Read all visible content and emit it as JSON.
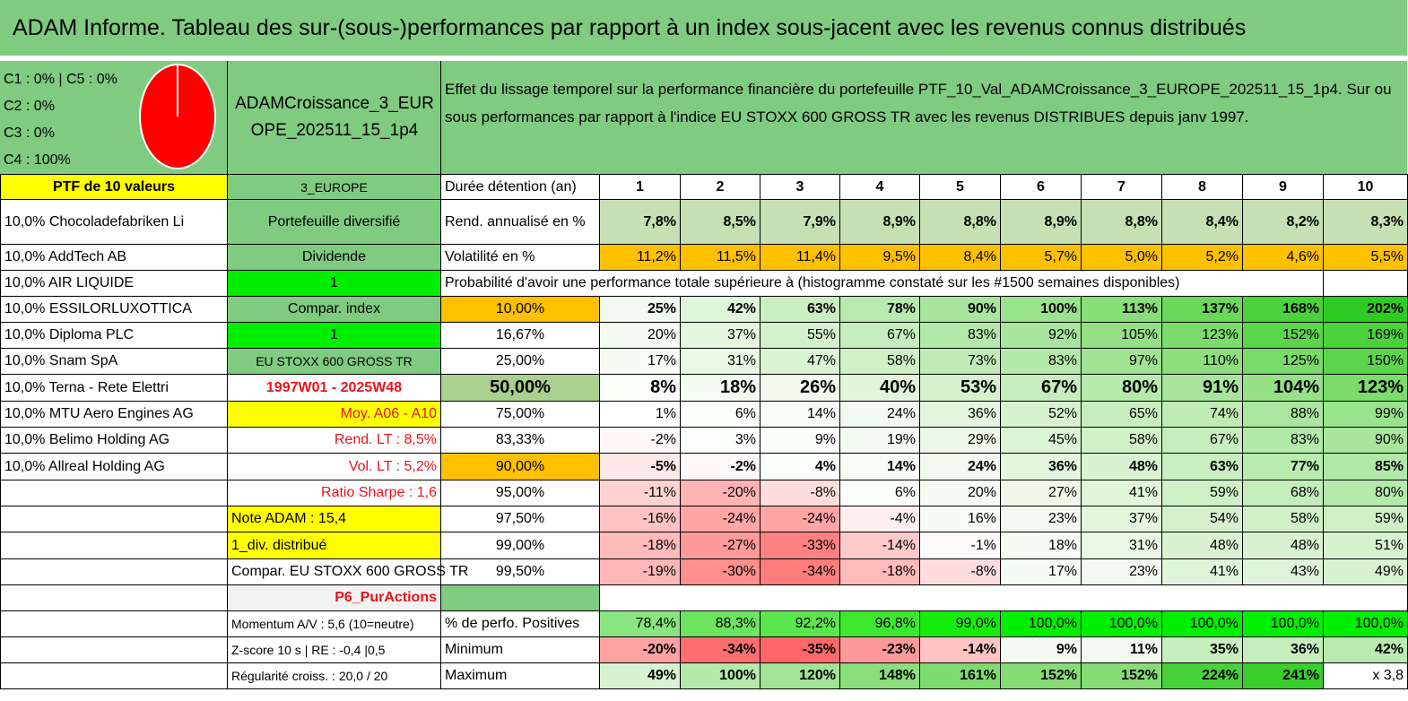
{
  "title": "ADAM Informe. Tableau des sur-(sous-)performances par rapport à un index sous-jacent avec les revenus connus distribués",
  "classes": [
    "C1 : 0% | C5 : 0%",
    "C2 : 0%",
    "C3 : 0%",
    "C4 : 100%"
  ],
  "pie": {
    "slices": [
      {
        "label": "C4",
        "value": 100,
        "color": "#ff0000"
      }
    ],
    "outline": "#ffffff"
  },
  "portfolio_code": "ADAMCroissance_3_EUROPE_202511_15_1p4",
  "description": "Effet du lissage temporel sur la performance financière du portefeuille PTF_10_Val_ADAMCroissance_3_EUROPE_202511_15_1p4. Sur ou sous performances par rapport à l'indice EU STOXX 600 GROSS TR avec les revenus DISTRIBUES depuis janv 1997.",
  "colors": {
    "header_green": "#7fcb80",
    "yellow": "#ffff00",
    "bright_green": "#00ee00",
    "orange": "#ffc000",
    "label_red": "#e8141c"
  },
  "rows": [
    [
      {
        "t": "PTF de 10 valeurs",
        "bg": "#ffff00",
        "cls": "c b"
      },
      {
        "t": "3_EUROPE",
        "bg": "#7fcb80",
        "cls": "c small"
      },
      {
        "t": "Durée détention (an)",
        "cls": "l"
      },
      {
        "t": "1",
        "cls": "c b"
      },
      {
        "t": "2",
        "cls": "c b"
      },
      {
        "t": "3",
        "cls": "c b"
      },
      {
        "t": "4",
        "cls": "c b"
      },
      {
        "t": "5",
        "cls": "c b"
      },
      {
        "t": "6",
        "cls": "c b"
      },
      {
        "t": "7",
        "cls": "c b"
      },
      {
        "t": "8",
        "cls": "c b"
      },
      {
        "t": "9",
        "cls": "c b"
      },
      {
        "t": "10",
        "cls": "c b"
      }
    ],
    [
      {
        "t": "10,0% Chocoladefabriken Li",
        "cls": "l"
      },
      {
        "t": "Portefeuille diversifié",
        "bg": "#7fcb80",
        "cls": "c"
      },
      {
        "t": "Rend. annualisé en %",
        "cls": "l"
      },
      {
        "t": "7,8%",
        "bg": "#c6e0b4",
        "cls": "r b"
      },
      {
        "t": "8,5%",
        "bg": "#c6e0b4",
        "cls": "r b"
      },
      {
        "t": "7,9%",
        "bg": "#c6e0b4",
        "cls": "r b"
      },
      {
        "t": "8,9%",
        "bg": "#c6e0b4",
        "cls": "r b"
      },
      {
        "t": "8,8%",
        "bg": "#c6e0b4",
        "cls": "r b"
      },
      {
        "t": "8,9%",
        "bg": "#c6e0b4",
        "cls": "r b"
      },
      {
        "t": "8,8%",
        "bg": "#c6e0b4",
        "cls": "r b"
      },
      {
        "t": "8,4%",
        "bg": "#c6e0b4",
        "cls": "r b"
      },
      {
        "t": "8,2%",
        "bg": "#c6e0b4",
        "cls": "r b"
      },
      {
        "t": "8,3%",
        "bg": "#c6e0b4",
        "cls": "r b"
      }
    ],
    [
      {
        "t": "10,0% AddTech AB",
        "cls": "l"
      },
      {
        "t": "Dividende",
        "bg": "#7fcb80",
        "cls": "c"
      },
      {
        "t": "Volatilité en %",
        "cls": "l"
      },
      {
        "t": "11,2%",
        "bg": "#ffc000",
        "cls": "r"
      },
      {
        "t": "11,5%",
        "bg": "#ffc000",
        "cls": "r"
      },
      {
        "t": "11,4%",
        "bg": "#ffc000",
        "cls": "r"
      },
      {
        "t": "9,5%",
        "bg": "#ffc000",
        "cls": "r"
      },
      {
        "t": "8,4%",
        "bg": "#ffc000",
        "cls": "r"
      },
      {
        "t": "5,7%",
        "bg": "#ffc000",
        "cls": "r"
      },
      {
        "t": "5,0%",
        "bg": "#ffc000",
        "cls": "r"
      },
      {
        "t": "5,2%",
        "bg": "#ffc000",
        "cls": "r"
      },
      {
        "t": "4,6%",
        "bg": "#ffc000",
        "cls": "r"
      },
      {
        "t": "5,5%",
        "bg": "#ffc000",
        "cls": "r"
      }
    ],
    [
      {
        "t": "10,0% AIR LIQUIDE",
        "cls": "l"
      },
      {
        "t": "1",
        "bg": "#00ee00",
        "cls": "c"
      },
      {
        "t": "Probabilité d'avoir une performance totale supérieure à (histogramme constaté sur les #1500 semaines disponibles)",
        "cls": "l",
        "span": 10
      },
      {
        "t": "",
        "cls": "c"
      }
    ],
    [
      {
        "t": "10,0% ESSILORLUXOTTICA",
        "cls": "l"
      },
      {
        "t": "Compar. index",
        "bg": "#7fcb80",
        "cls": "c"
      },
      {
        "t": "10,00%",
        "bg": "#ffc000",
        "cls": "c"
      },
      {
        "t": "25%",
        "bg": "#f1faee",
        "cls": "r b"
      },
      {
        "t": "42%",
        "bg": "#e0f5d9",
        "cls": "r b"
      },
      {
        "t": "63%",
        "bg": "#c9efc0",
        "cls": "r b"
      },
      {
        "t": "78%",
        "bg": "#b8eab0",
        "cls": "r b"
      },
      {
        "t": "90%",
        "bg": "#a8e69e",
        "cls": "r b"
      },
      {
        "t": "100%",
        "bg": "#9ae28d",
        "cls": "r b"
      },
      {
        "t": "113%",
        "bg": "#88de78",
        "cls": "r b"
      },
      {
        "t": "137%",
        "bg": "#6ad85a",
        "cls": "r b"
      },
      {
        "t": "168%",
        "bg": "#4bd23c",
        "cls": "r b"
      },
      {
        "t": "202%",
        "bg": "#2ecb22",
        "cls": "r b"
      }
    ],
    [
      {
        "t": "10,0% Diploma PLC",
        "cls": "l"
      },
      {
        "t": "1",
        "bg": "#00ee00",
        "cls": "c"
      },
      {
        "t": "16,67%",
        "cls": "c"
      },
      {
        "t": "20%",
        "bg": "#f4fbf1",
        "cls": "r"
      },
      {
        "t": "37%",
        "bg": "#e4f6de",
        "cls": "r"
      },
      {
        "t": "55%",
        "bg": "#d3f1cb",
        "cls": "r"
      },
      {
        "t": "67%",
        "bg": "#c6edbd",
        "cls": "r"
      },
      {
        "t": "83%",
        "bg": "#b3e9a9",
        "cls": "r"
      },
      {
        "t": "92%",
        "bg": "#a6e59b",
        "cls": "r"
      },
      {
        "t": "105%",
        "bg": "#95e086",
        "cls": "r"
      },
      {
        "t": "123%",
        "bg": "#7bdb6b",
        "cls": "r"
      },
      {
        "t": "152%",
        "bg": "#5bd54b",
        "cls": "r"
      },
      {
        "t": "169%",
        "bg": "#4ad23b",
        "cls": "r"
      }
    ],
    [
      {
        "t": "10,0% Snam SpA",
        "cls": "l"
      },
      {
        "t": "EU STOXX 600 GROSS TR",
        "bg": "#7fcb80",
        "cls": "c small"
      },
      {
        "t": "25,00%",
        "cls": "c"
      },
      {
        "t": "17%",
        "bg": "#f6fcf4",
        "cls": "r"
      },
      {
        "t": "31%",
        "bg": "#e9f8e4",
        "cls": "r"
      },
      {
        "t": "47%",
        "bg": "#daf3d3",
        "cls": "r"
      },
      {
        "t": "58%",
        "bg": "#d0f0c8",
        "cls": "r"
      },
      {
        "t": "73%",
        "bg": "#bfecb6",
        "cls": "r"
      },
      {
        "t": "83%",
        "bg": "#b3e9a9",
        "cls": "r"
      },
      {
        "t": "97%",
        "bg": "#a0e393",
        "cls": "r"
      },
      {
        "t": "110%",
        "bg": "#8ddf7e",
        "cls": "r"
      },
      {
        "t": "125%",
        "bg": "#78da68",
        "cls": "r"
      },
      {
        "t": "150%",
        "bg": "#5cd54c",
        "cls": "r"
      }
    ],
    [
      {
        "t": "10,0% Terna - Rete Elettri",
        "cls": "l"
      },
      {
        "t": "1997W01 - 2025W48",
        "cls": "c red b"
      },
      {
        "t": "50,00%",
        "bg": "#a9d08e",
        "cls": "c big"
      },
      {
        "t": "8%",
        "bg": "#fbfefa",
        "cls": "r big"
      },
      {
        "t": "18%",
        "bg": "#f5fcf2",
        "cls": "r big"
      },
      {
        "t": "26%",
        "bg": "#eff9ec",
        "cls": "r big"
      },
      {
        "t": "40%",
        "bg": "#e2f5db",
        "cls": "r big"
      },
      {
        "t": "53%",
        "bg": "#d5f2cd",
        "cls": "r big"
      },
      {
        "t": "67%",
        "bg": "#c6edbd",
        "cls": "r big"
      },
      {
        "t": "80%",
        "bg": "#b6eaac",
        "cls": "r big"
      },
      {
        "t": "91%",
        "bg": "#a7e59c",
        "cls": "r big"
      },
      {
        "t": "104%",
        "bg": "#96e087",
        "cls": "r big"
      },
      {
        "t": "123%",
        "bg": "#7bdb6b",
        "cls": "r big"
      }
    ],
    [
      {
        "t": "10,0% MTU Aero Engines AG",
        "cls": "l"
      },
      {
        "t": "Moy. A06 - A10",
        "bg": "#ffff00",
        "cls": "r red"
      },
      {
        "t": "75,00%",
        "cls": "c"
      },
      {
        "t": "1%",
        "bg": "#ffffff",
        "cls": "r"
      },
      {
        "t": "6%",
        "bg": "#fbfefa",
        "cls": "r"
      },
      {
        "t": "14%",
        "bg": "#f7fcf5",
        "cls": "r"
      },
      {
        "t": "24%",
        "bg": "#f1faee",
        "cls": "r"
      },
      {
        "t": "36%",
        "bg": "#e5f6df",
        "cls": "r"
      },
      {
        "t": "52%",
        "bg": "#d6f2ce",
        "cls": "r"
      },
      {
        "t": "65%",
        "bg": "#c8eebf",
        "cls": "r"
      },
      {
        "t": "74%",
        "bg": "#bfecb5",
        "cls": "r"
      },
      {
        "t": "88%",
        "bg": "#aae69f",
        "cls": "r"
      },
      {
        "t": "99%",
        "bg": "#9ae28d",
        "cls": "r"
      }
    ],
    [
      {
        "t": "10,0% Belimo Holding AG",
        "cls": "l"
      },
      {
        "t": "Rend. LT : 8,5%",
        "cls": "r red"
      },
      {
        "t": "83,33%",
        "cls": "c"
      },
      {
        "t": "-2%",
        "bg": "#fff8f8",
        "cls": "r"
      },
      {
        "t": "3%",
        "bg": "#fdfffc",
        "cls": "r"
      },
      {
        "t": "9%",
        "bg": "#fafdf9",
        "cls": "r"
      },
      {
        "t": "19%",
        "bg": "#f4fbf1",
        "cls": "r"
      },
      {
        "t": "29%",
        "bg": "#ecf8e7",
        "cls": "r"
      },
      {
        "t": "45%",
        "bg": "#dcf4d5",
        "cls": "r"
      },
      {
        "t": "58%",
        "bg": "#d0f0c8",
        "cls": "r"
      },
      {
        "t": "67%",
        "bg": "#c6edbd",
        "cls": "r"
      },
      {
        "t": "83%",
        "bg": "#b3e9a9",
        "cls": "r"
      },
      {
        "t": "90%",
        "bg": "#a8e69e",
        "cls": "r"
      }
    ],
    [
      {
        "t": "10,0% Allreal Holding AG",
        "cls": "l"
      },
      {
        "t": "Vol. LT : 5,2%",
        "cls": "r red"
      },
      {
        "t": "90,00%",
        "bg": "#ffc000",
        "cls": "c"
      },
      {
        "t": "-5%",
        "bg": "#ffe8e8",
        "cls": "r b"
      },
      {
        "t": "-2%",
        "bg": "#fff8f8",
        "cls": "r b"
      },
      {
        "t": "4%",
        "bg": "#fcfefb",
        "cls": "r b"
      },
      {
        "t": "14%",
        "bg": "#f7fcf5",
        "cls": "r b"
      },
      {
        "t": "24%",
        "bg": "#f1faee",
        "cls": "r b"
      },
      {
        "t": "36%",
        "bg": "#e5f6df",
        "cls": "r b"
      },
      {
        "t": "48%",
        "bg": "#d9f3d2",
        "cls": "r b"
      },
      {
        "t": "63%",
        "bg": "#c9efc0",
        "cls": "r b"
      },
      {
        "t": "77%",
        "bg": "#baebb1",
        "cls": "r b"
      },
      {
        "t": "85%",
        "bg": "#b1e8a7",
        "cls": "r b"
      }
    ],
    [
      {
        "t": "",
        "cls": "l"
      },
      {
        "t": "Ratio Sharpe : 1,6",
        "cls": "r red"
      },
      {
        "t": "95,00%",
        "cls": "c"
      },
      {
        "t": "-11%",
        "bg": "#ffd2d2",
        "cls": "r"
      },
      {
        "t": "-20%",
        "bg": "#ffb3b3",
        "cls": "r"
      },
      {
        "t": "-8%",
        "bg": "#ffdddd",
        "cls": "r"
      },
      {
        "t": "6%",
        "bg": "#fbfefa",
        "cls": "r"
      },
      {
        "t": "20%",
        "bg": "#f4fbf1",
        "cls": "r"
      },
      {
        "t": "27%",
        "bg": "#eef9ea",
        "cls": "r"
      },
      {
        "t": "41%",
        "bg": "#e1f5da",
        "cls": "r"
      },
      {
        "t": "59%",
        "bg": "#cff0c7",
        "cls": "r"
      },
      {
        "t": "68%",
        "bg": "#c5edbc",
        "cls": "r"
      },
      {
        "t": "80%",
        "bg": "#b6eaac",
        "cls": "r"
      }
    ],
    [
      {
        "t": "",
        "cls": "l"
      },
      {
        "t": "Note ADAM : 15,4",
        "bg": "#ffff00",
        "cls": "l"
      },
      {
        "t": "97,50%",
        "cls": "c"
      },
      {
        "t": "-16%",
        "bg": "#ffc2c2",
        "cls": "r"
      },
      {
        "t": "-24%",
        "bg": "#ffa5a5",
        "cls": "r"
      },
      {
        "t": "-24%",
        "bg": "#ffa5a5",
        "cls": "r"
      },
      {
        "t": "-4%",
        "bg": "#ffeeee",
        "cls": "r"
      },
      {
        "t": "16%",
        "bg": "#f6fcf3",
        "cls": "r"
      },
      {
        "t": "23%",
        "bg": "#f1faee",
        "cls": "r"
      },
      {
        "t": "37%",
        "bg": "#e4f6de",
        "cls": "r"
      },
      {
        "t": "54%",
        "bg": "#d4f1cc",
        "cls": "r"
      },
      {
        "t": "58%",
        "bg": "#d0f0c8",
        "cls": "r"
      },
      {
        "t": "59%",
        "bg": "#cff0c7",
        "cls": "r"
      }
    ],
    [
      {
        "t": "",
        "cls": "l"
      },
      {
        "t": "1_div. distribué",
        "bg": "#ffff00",
        "cls": "l"
      },
      {
        "t": "99,00%",
        "cls": "c"
      },
      {
        "t": "-18%",
        "bg": "#ffbaba",
        "cls": "r"
      },
      {
        "t": "-27%",
        "bg": "#ff9a9a",
        "cls": "r"
      },
      {
        "t": "-33%",
        "bg": "#ff8181",
        "cls": "r"
      },
      {
        "t": "-14%",
        "bg": "#ffc9c9",
        "cls": "r"
      },
      {
        "t": "-1%",
        "bg": "#fffafa",
        "cls": "r"
      },
      {
        "t": "18%",
        "bg": "#f5fcf2",
        "cls": "r"
      },
      {
        "t": "31%",
        "bg": "#e9f8e4",
        "cls": "r"
      },
      {
        "t": "48%",
        "bg": "#d9f3d2",
        "cls": "r"
      },
      {
        "t": "48%",
        "bg": "#d9f3d2",
        "cls": "r"
      },
      {
        "t": "51%",
        "bg": "#d7f2cf",
        "cls": "r"
      }
    ],
    [
      {
        "t": "",
        "cls": "l"
      },
      {
        "t": "Compar. EU STOXX 600 GROSS TR",
        "cls": "l"
      },
      {
        "t": "99,50%",
        "cls": "c"
      },
      {
        "t": "-19%",
        "bg": "#ffb6b6",
        "cls": "r"
      },
      {
        "t": "-30%",
        "bg": "#ff8e8e",
        "cls": "r"
      },
      {
        "t": "-34%",
        "bg": "#ff7d7d",
        "cls": "r"
      },
      {
        "t": "-18%",
        "bg": "#ffbaba",
        "cls": "r"
      },
      {
        "t": "-8%",
        "bg": "#ffdddd",
        "cls": "r"
      },
      {
        "t": "17%",
        "bg": "#f5fcf3",
        "cls": "r"
      },
      {
        "t": "23%",
        "bg": "#f1faee",
        "cls": "r"
      },
      {
        "t": "41%",
        "bg": "#e1f5da",
        "cls": "r"
      },
      {
        "t": "43%",
        "bg": "#dff4d8",
        "cls": "r"
      },
      {
        "t": "49%",
        "bg": "#d8f3d1",
        "cls": "r"
      }
    ],
    [
      {
        "t": "",
        "cls": "l"
      },
      {
        "t": "P6_PurActions",
        "bg": "#f2f2f2",
        "cls": "r red b"
      },
      {
        "t": "",
        "bg": "#7fcb80",
        "cls": "c"
      },
      {
        "t": "",
        "cls": "c",
        "span": 10
      }
    ],
    [
      {
        "t": "",
        "cls": "l"
      },
      {
        "t": "Momentum A/V : 5,6 (10=neutre)",
        "cls": "l small"
      },
      {
        "t": "% de perfo. Positives",
        "cls": "l"
      },
      {
        "t": "78,4%",
        "bg": "#8ae47f",
        "cls": "r"
      },
      {
        "t": "88,3%",
        "bg": "#6ce45e",
        "cls": "r"
      },
      {
        "t": "92,2%",
        "bg": "#5ce64d",
        "cls": "r"
      },
      {
        "t": "96,8%",
        "bg": "#3be82d",
        "cls": "r"
      },
      {
        "t": "99,0%",
        "bg": "#14ed0c",
        "cls": "r"
      },
      {
        "t": "100,0%",
        "bg": "#00ee00",
        "cls": "r"
      },
      {
        "t": "100,0%",
        "bg": "#00ee00",
        "cls": "r"
      },
      {
        "t": "100,0%",
        "bg": "#00ee00",
        "cls": "r"
      },
      {
        "t": "100,0%",
        "bg": "#00ee00",
        "cls": "r"
      },
      {
        "t": "100,0%",
        "bg": "#00ee00",
        "cls": "r"
      }
    ],
    [
      {
        "t": "",
        "cls": "l"
      },
      {
        "t": "Z-score 10 s | RE : -0,4 |0,5",
        "cls": "l small"
      },
      {
        "t": "Minimum",
        "cls": "l"
      },
      {
        "t": "-20%",
        "bg": "#ffa2a2",
        "cls": "r b"
      },
      {
        "t": "-34%",
        "bg": "#ff6e6e",
        "cls": "r b"
      },
      {
        "t": "-35%",
        "bg": "#ff6868",
        "cls": "r b"
      },
      {
        "t": "-23%",
        "bg": "#ff9898",
        "cls": "r b"
      },
      {
        "t": "-14%",
        "bg": "#ffc3c3",
        "cls": "r b"
      },
      {
        "t": "9%",
        "bg": "#f4fbf1",
        "cls": "r b"
      },
      {
        "t": "11%",
        "bg": "#f2faef",
        "cls": "r b"
      },
      {
        "t": "35%",
        "bg": "#c7eebe",
        "cls": "r b"
      },
      {
        "t": "36%",
        "bg": "#c5edbc",
        "cls": "r b"
      },
      {
        "t": "42%",
        "bg": "#b9ebb0",
        "cls": "r b"
      }
    ],
    [
      {
        "t": "",
        "cls": "l"
      },
      {
        "t": "Régularité croiss. : 20,0 / 20",
        "cls": "l small"
      },
      {
        "t": "Maximum",
        "cls": "l"
      },
      {
        "t": "49%",
        "bg": "#d8f3d1",
        "cls": "r b"
      },
      {
        "t": "100%",
        "bg": "#b4e9aa",
        "cls": "r b"
      },
      {
        "t": "120%",
        "bg": "#a2e395",
        "cls": "r b"
      },
      {
        "t": "148%",
        "bg": "#8ade7b",
        "cls": "r b"
      },
      {
        "t": "161%",
        "bg": "#7edb6e",
        "cls": "r b"
      },
      {
        "t": "152%",
        "bg": "#86dd76",
        "cls": "r b"
      },
      {
        "t": "152%",
        "bg": "#86dd76",
        "cls": "r b"
      },
      {
        "t": "224%",
        "bg": "#48d23a",
        "cls": "r b"
      },
      {
        "t": "241%",
        "bg": "#38ce2c",
        "cls": "r b"
      },
      {
        "t": "x 3,8",
        "cls": "r"
      }
    ]
  ]
}
